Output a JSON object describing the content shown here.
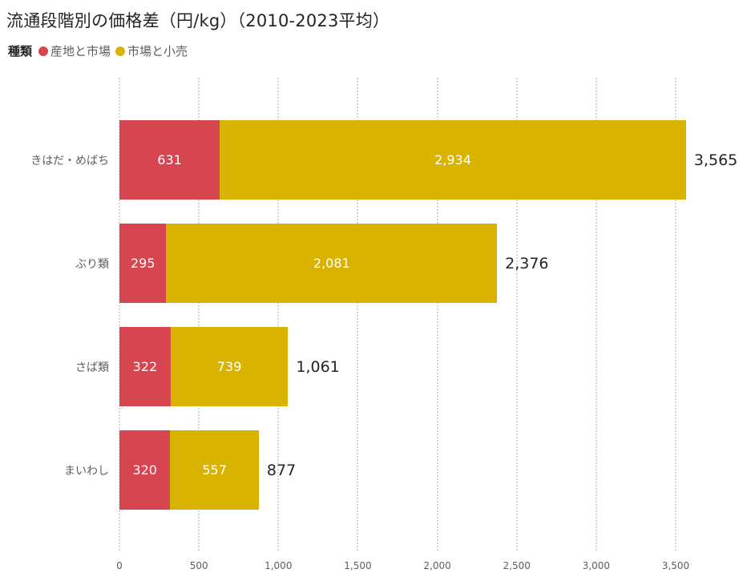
{
  "chart_data": {
    "type": "bar",
    "orientation": "horizontal",
    "stacked": true,
    "title": "流通段階別の価格差（円/kg）（2010-2023平均）",
    "legend_title": "種類",
    "legend_position": "top-left",
    "categories": [
      "きはだ・めばち",
      "ぶり類",
      "さば類",
      "まいわし"
    ],
    "series": [
      {
        "name": "産地と市場",
        "color": "#D64550",
        "values": [
          631,
          295,
          322,
          320
        ],
        "labels": [
          "631",
          "295",
          "322",
          "320"
        ]
      },
      {
        "name": "市場と小売",
        "color": "#D9B300",
        "values": [
          2934,
          2081,
          739,
          557
        ],
        "labels": [
          "2,934",
          "2,081",
          "739",
          "557"
        ]
      }
    ],
    "totals": [
      3565,
      2376,
      1061,
      877
    ],
    "total_labels": [
      "3,565",
      "2,376",
      "1,061",
      "877"
    ],
    "xlabel": "",
    "ylabel": "",
    "xlim": [
      0,
      3500
    ],
    "xticks": [
      0,
      500,
      1000,
      1500,
      2000,
      2500,
      3000,
      3500
    ],
    "xtick_labels": [
      "0",
      "500",
      "1,000",
      "1,500",
      "2,000",
      "2,500",
      "3,000",
      "3,500"
    ],
    "grid": "vertical dotted"
  },
  "header": {
    "title": "流通段階別の価格差（円/kg）（2010-2023平均）"
  },
  "legend": {
    "title": "種類",
    "items": [
      {
        "label": "産地と市場",
        "color": "#D64550"
      },
      {
        "label": "市場と小売",
        "color": "#D9B300"
      }
    ]
  }
}
